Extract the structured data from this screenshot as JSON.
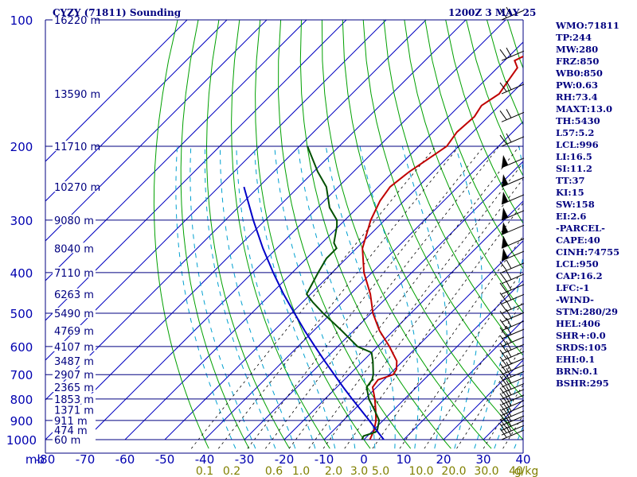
{
  "header": {
    "title": "CYZY (71811) Sounding",
    "time": "1200Z  3 MAY 25"
  },
  "indices": [
    "WMO:71811",
    "TP:244",
    "MW:280",
    "FRZ:850",
    "WB0:850",
    "PW:0.63",
    "RH:73.4",
    "MAXT:13.0",
    "TH:5430",
    "L57:5.2",
    "LCL:996",
    "LI:16.5",
    "SI:11.2",
    "TT:37",
    "KI:15",
    "SW:158",
    "EI:2.6",
    "-PARCEL-",
    "CAPE:40",
    "CINH:74755",
    "LCL:950",
    "CAP:16.2",
    "LFC:-1",
    "-WIND-",
    "STM:280/29",
    "HEL:406",
    "SHR+:0.0",
    "SRDS:105",
    "EHI:0.1",
    "BRN:0.1",
    "BSHR:295"
  ],
  "colors": {
    "isobar": "#000080",
    "isotherm": "#0000c0",
    "dry_adiabat": "#00a000",
    "temperature": "#c00000",
    "dewpoint": "#005000",
    "parcel": "#0000c8",
    "mixing_ratio": "#000000",
    "moist_adiabat": "#00a0d0",
    "mixing_label": "#808000",
    "axis_label": "#0000b0",
    "wind_barb": "#000000"
  },
  "chart_data": {
    "type": "line",
    "title": "CYZY (71811) Sounding",
    "subtitle": "1200Z  3 MAY 25",
    "x_axis": {
      "unit_label": "mb",
      "ticks": [
        "-80",
        "-70",
        "-60",
        "-50",
        "-40",
        "-30",
        "-20",
        "-10",
        "0",
        "10",
        "20",
        "30",
        "40"
      ],
      "range_c": [
        -80,
        40
      ]
    },
    "y_axis": {
      "log_scale": true,
      "ticks": [
        "100",
        "200",
        "300",
        "400",
        "500",
        "600",
        "700",
        "800",
        "900",
        "1000"
      ],
      "range_mb": [
        1000,
        100
      ]
    },
    "grid": true,
    "height_labels": [
      {
        "p": 1000,
        "label": "60 m"
      },
      {
        "p": 950,
        "label": "474 m"
      },
      {
        "p": 900,
        "label": "911 m"
      },
      {
        "p": 850,
        "label": "1371 m"
      },
      {
        "p": 800,
        "label": "1853 m"
      },
      {
        "p": 750,
        "label": "2365 m"
      },
      {
        "p": 700,
        "label": "2907 m"
      },
      {
        "p": 650,
        "label": "3487 m"
      },
      {
        "p": 600,
        "label": "4107 m"
      },
      {
        "p": 550,
        "label": "4769 m"
      },
      {
        "p": 500,
        "label": "5490 m"
      },
      {
        "p": 450,
        "label": "6263 m"
      },
      {
        "p": 400,
        "label": "7110 m"
      },
      {
        "p": 350,
        "label": "8040 m"
      },
      {
        "p": 300,
        "label": "9080 m"
      },
      {
        "p": 250,
        "label": "10270 m"
      },
      {
        "p": 200,
        "label": "11710 m"
      },
      {
        "p": 150,
        "label": "13590 m"
      },
      {
        "p": 100,
        "label": "16220 m"
      }
    ],
    "mixing_ratio_labels": [
      "0.1",
      "0.2",
      "0.6",
      "1.0",
      "2.0",
      "3.0",
      "5.0",
      "10.0",
      "20.0",
      "30.0",
      "40",
      "g/kg"
    ],
    "series": [
      {
        "key": "temperature",
        "points": [
          {
            "p": 1000,
            "t": 1.5
          },
          {
            "p": 950,
            "t": 0.2
          },
          {
            "p": 900,
            "t": -1.8
          },
          {
            "p": 850,
            "t": -4.5
          },
          {
            "p": 800,
            "t": -7.5
          },
          {
            "p": 750,
            "t": -11.0
          },
          {
            "p": 720,
            "t": -11.5
          },
          {
            "p": 700,
            "t": -9.0
          },
          {
            "p": 680,
            "t": -9.5
          },
          {
            "p": 650,
            "t": -11.5
          },
          {
            "p": 600,
            "t": -17.0
          },
          {
            "p": 550,
            "t": -23.5
          },
          {
            "p": 500,
            "t": -29.5
          },
          {
            "p": 450,
            "t": -35.0
          },
          {
            "p": 400,
            "t": -42.0
          },
          {
            "p": 350,
            "t": -48.5
          },
          {
            "p": 300,
            "t": -53.5
          },
          {
            "p": 270,
            "t": -56.0
          },
          {
            "p": 250,
            "t": -57.0
          },
          {
            "p": 230,
            "t": -56.0
          },
          {
            "p": 210,
            "t": -54.0
          },
          {
            "p": 200,
            "t": -53.0
          },
          {
            "p": 185,
            "t": -54.0
          },
          {
            "p": 170,
            "t": -53.5
          },
          {
            "p": 160,
            "t": -54.5
          },
          {
            "p": 150,
            "t": -53.0
          },
          {
            "p": 140,
            "t": -54.0
          },
          {
            "p": 130,
            "t": -55.0
          },
          {
            "p": 125,
            "t": -57.5
          },
          {
            "p": 120,
            "t": -55.5
          },
          {
            "p": 110,
            "t": -56.0
          },
          {
            "p": 105,
            "t": -56.5
          },
          {
            "p": 100,
            "t": -58.0
          }
        ]
      },
      {
        "key": "dewpoint",
        "points": [
          {
            "p": 1000,
            "t": -0.5
          },
          {
            "p": 980,
            "t": -1.0
          },
          {
            "p": 960,
            "t": 1.0
          },
          {
            "p": 950,
            "t": 1.0
          },
          {
            "p": 900,
            "t": -1.0
          },
          {
            "p": 850,
            "t": -4.8
          },
          {
            "p": 800,
            "t": -9.0
          },
          {
            "p": 750,
            "t": -12.5
          },
          {
            "p": 720,
            "t": -13.0
          },
          {
            "p": 700,
            "t": -14.0
          },
          {
            "p": 650,
            "t": -17.5
          },
          {
            "p": 620,
            "t": -20.0
          },
          {
            "p": 600,
            "t": -25.0
          },
          {
            "p": 550,
            "t": -33.0
          },
          {
            "p": 500,
            "t": -42.0
          },
          {
            "p": 470,
            "t": -47.5
          },
          {
            "p": 450,
            "t": -51.0
          },
          {
            "p": 400,
            "t": -53.5
          },
          {
            "p": 370,
            "t": -55.0
          },
          {
            "p": 350,
            "t": -55.0
          },
          {
            "p": 340,
            "t": -57.0
          },
          {
            "p": 310,
            "t": -60.5
          },
          {
            "p": 300,
            "t": -62.0
          },
          {
            "p": 280,
            "t": -67.0
          },
          {
            "p": 250,
            "t": -73.0
          },
          {
            "p": 230,
            "t": -79.0
          },
          {
            "p": 200,
            "t": -88.0
          }
        ]
      },
      {
        "key": "parcel",
        "points": [
          {
            "p": 1000,
            "t": 5.0
          },
          {
            "p": 950,
            "t": 0.8
          },
          {
            "p": 900,
            "t": -3.5
          },
          {
            "p": 850,
            "t": -8.2
          },
          {
            "p": 800,
            "t": -13.2
          },
          {
            "p": 750,
            "t": -18.4
          },
          {
            "p": 700,
            "t": -23.8
          },
          {
            "p": 650,
            "t": -29.6
          },
          {
            "p": 600,
            "t": -35.7
          },
          {
            "p": 550,
            "t": -42.3
          },
          {
            "p": 500,
            "t": -49.2
          },
          {
            "p": 450,
            "t": -56.8
          },
          {
            "p": 400,
            "t": -64.8
          },
          {
            "p": 350,
            "t": -73.5
          },
          {
            "p": 300,
            "t": -83.0
          },
          {
            "p": 250,
            "t": -93.7
          }
        ]
      }
    ]
  }
}
